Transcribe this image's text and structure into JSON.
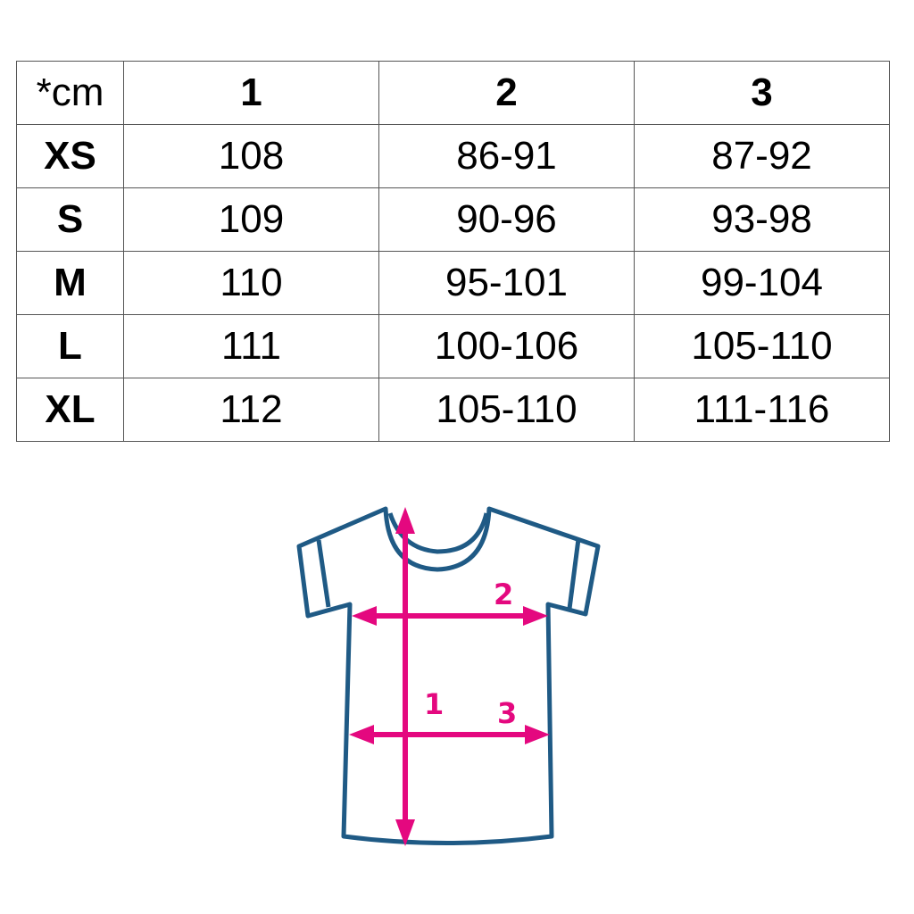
{
  "table": {
    "headers": [
      "*cm",
      "1",
      "2",
      "3"
    ],
    "rows": [
      [
        "XS",
        "108",
        "86-91",
        "87-92"
      ],
      [
        "S",
        "109",
        "90-96",
        "93-98"
      ],
      [
        "M",
        "110",
        "95-101",
        "99-104"
      ],
      [
        "L",
        "111",
        "100-106",
        "105-110"
      ],
      [
        "XL",
        "112",
        "105-110",
        "111-116"
      ]
    ]
  },
  "diagram": {
    "labels": [
      "1",
      "2",
      "3"
    ],
    "outline_color": "#1f5a85",
    "arrow_color": "#e4087f"
  }
}
